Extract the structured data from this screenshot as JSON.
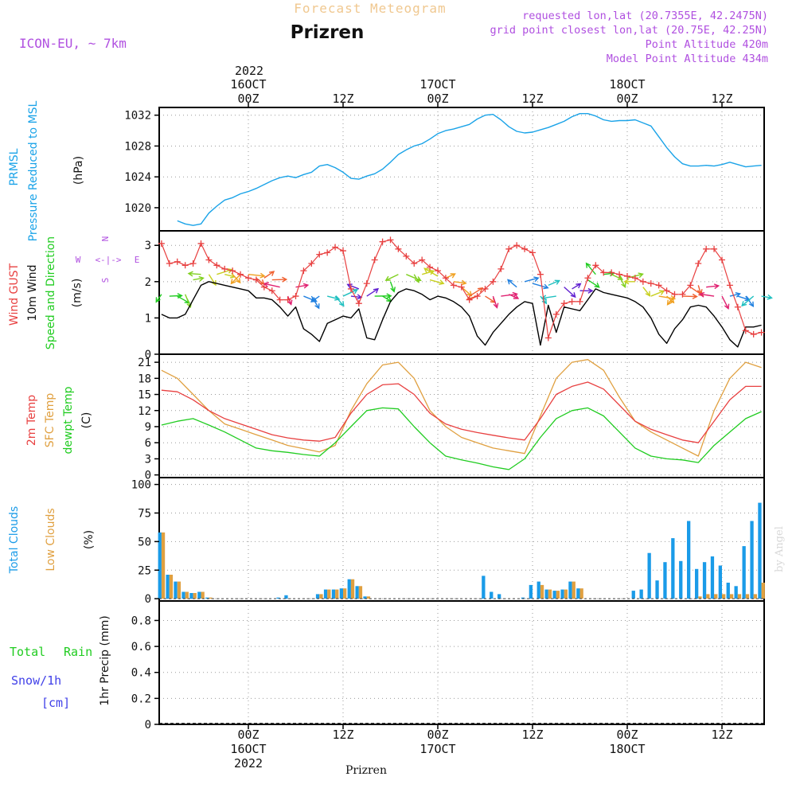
{
  "header": {
    "product": "Forecast Meteogram",
    "location": "Prizren",
    "model": "ICON-EU, ~ 7km",
    "requested": "requested lon,lat (20.7355E, 42.2475N)",
    "gridpoint": "grid point closest lon,lat (20.75E, 42.25N)",
    "point_alt": "Point Altitude 420m",
    "model_alt": "Model Point Altitude 434m",
    "footer": "Prizren",
    "credit": "by Angel"
  },
  "time_axis": {
    "top_year": "2022",
    "ticks": [
      {
        "hour": 0,
        "top": [
          "16OCT",
          "00Z"
        ],
        "bottom": [
          "00Z",
          "16OCT",
          "2022"
        ]
      },
      {
        "hour": 12,
        "top": [
          "12Z"
        ],
        "bottom": [
          "12Z"
        ]
      },
      {
        "hour": 24,
        "top": [
          "17OCT",
          "00Z"
        ],
        "bottom": [
          "00Z",
          "17OCT"
        ]
      },
      {
        "hour": 36,
        "top": [
          "12Z"
        ],
        "bottom": [
          "12Z"
        ]
      },
      {
        "hour": 48,
        "top": [
          "18OCT",
          "00Z"
        ],
        "bottom": [
          "00Z",
          "18OCT"
        ]
      },
      {
        "hour": 60,
        "top": [
          "12Z"
        ],
        "bottom": [
          "12Z"
        ]
      }
    ]
  },
  "panel_labels": {
    "p1": {
      "name": "PRMSL",
      "desc": "Pressure Reduced to MSL",
      "unit": "(hPa)"
    },
    "p2": {
      "gust": "Wind GUST",
      "wind": "10m Wind",
      "dir": "Speed and Direction",
      "unit": "(m/s)",
      "compass_n": "N",
      "compass_s": "S",
      "compass_w": "W",
      "compass_e": "E",
      "compass_h": "<-|->"
    },
    "p3": {
      "t2m": "2m Temp",
      "sfc": "SFC Temp",
      "dew": "dewpt Temp",
      "unit": "(C)"
    },
    "p4": {
      "total": "Total Clouds",
      "low": "Low Clouds",
      "unit": "(%)"
    },
    "p5": {
      "rain_a": "Total",
      "rain_b": "Rain",
      "snow": "Snow/1h",
      "snow_unit": "[cm]",
      "precip": "1hr Precip (mm)"
    }
  },
  "colors": {
    "pressure": "#1aa3e8",
    "gust": "#e84040",
    "wind": "#000000",
    "t2m": "#e84040",
    "sfc": "#e0a040",
    "dew": "#20cc20",
    "total_cloud": "#1a9be8",
    "low_cloud": "#e0a040",
    "rain": "#20cc20",
    "snow": "#4040e8",
    "header_orange": "#f0c890",
    "header_purple": "#b050e0"
  },
  "chart_data": [
    {
      "type": "line",
      "title": "PRMSL",
      "ylabel": "(hPa)",
      "x_hours_from_16OCT_00Z": [
        -9,
        -8,
        -7,
        -6,
        -5,
        -4,
        -3,
        -2,
        -1,
        0,
        1,
        2,
        3,
        4,
        5,
        6,
        7,
        8,
        9,
        10,
        11,
        12,
        13,
        14,
        15,
        16,
        17,
        18,
        19,
        20,
        21,
        22,
        23,
        24,
        25,
        26,
        27,
        28,
        29,
        30,
        31,
        32,
        33,
        34,
        35,
        36,
        37,
        38,
        39,
        40,
        41,
        42,
        43,
        44,
        45,
        46,
        47,
        48,
        49,
        50,
        51,
        52,
        53,
        54,
        55,
        56,
        57,
        58,
        59,
        60,
        61,
        62,
        63,
        64,
        65
      ],
      "values": [
        1018.3,
        1017.9,
        1017.7,
        1017.9,
        1019.3,
        1020.2,
        1021.0,
        1021.3,
        1021.8,
        1022.1,
        1022.5,
        1023.0,
        1023.5,
        1023.9,
        1024.1,
        1023.9,
        1024.3,
        1024.6,
        1025.4,
        1025.6,
        1025.2,
        1024.6,
        1023.8,
        1023.7,
        1024.1,
        1024.4,
        1025.0,
        1025.9,
        1026.9,
        1027.5,
        1028.0,
        1028.3,
        1028.9,
        1029.6,
        1030.0,
        1030.2,
        1030.5,
        1030.8,
        1031.5,
        1032.0,
        1032.1,
        1031.4,
        1030.5,
        1029.9,
        1029.7,
        1029.8,
        1030.1,
        1030.4,
        1030.8,
        1031.2,
        1031.8,
        1032.2,
        1032.2,
        1031.9,
        1031.4,
        1031.2,
        1031.3,
        1031.3,
        1031.4,
        1031.0,
        1030.6,
        1029.2,
        1027.8,
        1026.6,
        1025.7,
        1025.4,
        1025.4,
        1025.5,
        1025.4,
        1025.6,
        1025.9,
        1025.6,
        1025.3,
        1025.4,
        1025.5
      ],
      "ylim": [
        1017,
        1033
      ],
      "yticks": [
        1020,
        1024,
        1028,
        1032
      ]
    },
    {
      "type": "line",
      "title": "Wind",
      "ylabel": "(m/s)",
      "x_hours_from_16OCT_00Z": [
        -11,
        -10,
        -9,
        -8,
        -7,
        -6,
        -5,
        -4,
        -3,
        -2,
        -1,
        0,
        1,
        2,
        3,
        4,
        5,
        6,
        7,
        8,
        9,
        10,
        11,
        12,
        13,
        14,
        15,
        16,
        17,
        18,
        19,
        20,
        21,
        22,
        23,
        24,
        25,
        26,
        27,
        28,
        29,
        30,
        31,
        32,
        33,
        34,
        35,
        36,
        37,
        38,
        39,
        40,
        41,
        42,
        43,
        44,
        45,
        46,
        47,
        48,
        49,
        50,
        51,
        52,
        53,
        54,
        55,
        56,
        57,
        58,
        59,
        60,
        61,
        62,
        63,
        64,
        65
      ],
      "series": [
        {
          "name": "Wind GUST",
          "values": [
            3.05,
            2.5,
            2.55,
            2.45,
            2.5,
            3.05,
            2.6,
            2.45,
            2.35,
            2.3,
            2.2,
            2.1,
            2.05,
            1.85,
            1.75,
            1.5,
            1.5,
            1.6,
            2.3,
            2.5,
            2.75,
            2.8,
            2.95,
            2.85,
            1.8,
            1.4,
            1.95,
            2.6,
            3.1,
            3.15,
            2.9,
            2.7,
            2.5,
            2.6,
            2.4,
            2.3,
            2.1,
            1.9,
            1.85,
            1.5,
            1.6,
            1.8,
            2.0,
            2.35,
            2.9,
            3.0,
            2.9,
            2.8,
            2.2,
            0.45,
            1.1,
            1.4,
            1.45,
            1.45,
            2.1,
            2.45,
            2.25,
            2.25,
            2.2,
            2.15,
            2.1,
            2.0,
            1.95,
            1.9,
            1.75,
            1.65,
            1.65,
            1.9,
            2.5,
            2.9,
            2.9,
            2.6,
            1.9,
            1.3,
            0.65,
            0.55,
            0.6
          ]
        },
        {
          "name": "10m Wind",
          "values": [
            1.1,
            1.0,
            1.0,
            1.1,
            1.5,
            1.9,
            2.0,
            1.95,
            1.9,
            1.85,
            1.8,
            1.75,
            1.55,
            1.55,
            1.5,
            1.3,
            1.05,
            1.3,
            0.7,
            0.55,
            0.35,
            0.85,
            0.95,
            1.05,
            1.0,
            1.25,
            0.45,
            0.4,
            0.95,
            1.45,
            1.7,
            1.8,
            1.75,
            1.65,
            1.5,
            1.6,
            1.55,
            1.45,
            1.3,
            1.05,
            0.5,
            0.25,
            0.6,
            0.85,
            1.1,
            1.3,
            1.45,
            1.4,
            0.25,
            1.35,
            0.6,
            1.3,
            1.25,
            1.2,
            1.5,
            1.8,
            1.7,
            1.65,
            1.6,
            1.55,
            1.45,
            1.3,
            1.0,
            0.55,
            0.3,
            0.7,
            0.95,
            1.3,
            1.35,
            1.3,
            1.05,
            0.75,
            0.4,
            0.2,
            0.75,
            0.75,
            0.8
          ]
        }
      ],
      "ylim": [
        0,
        3.4
      ],
      "yticks": [
        0,
        1,
        2,
        3
      ]
    },
    {
      "type": "line",
      "title": "Temperature",
      "ylabel": "(C)",
      "x_hours_from_16OCT_00Z": [
        -11,
        -9,
        -7,
        -5,
        -3,
        -1,
        1,
        3,
        5,
        7,
        9,
        11,
        13,
        15,
        17,
        19,
        21,
        23,
        25,
        27,
        29,
        31,
        33,
        35,
        37,
        39,
        41,
        43,
        45,
        47,
        49,
        51,
        53,
        55,
        57,
        59,
        61,
        63,
        65
      ],
      "series": [
        {
          "name": "2m Temp",
          "values": [
            15.8,
            15.5,
            14.0,
            12.0,
            10.5,
            9.5,
            8.5,
            7.5,
            6.9,
            6.5,
            6.3,
            7.0,
            11.5,
            15.0,
            16.8,
            17.0,
            15.0,
            11.5,
            9.5,
            8.5,
            7.9,
            7.4,
            6.9,
            6.5,
            10.5,
            15.0,
            16.5,
            17.3,
            16.0,
            13.0,
            10.0,
            8.5,
            7.5,
            6.5,
            6.0,
            10.0,
            14.0,
            16.5,
            16.5
          ]
        },
        {
          "name": "SFC Temp",
          "values": [
            19.5,
            18.0,
            15.0,
            12.0,
            9.5,
            8.5,
            7.5,
            6.5,
            5.5,
            4.9,
            4.3,
            5.5,
            12.0,
            17.0,
            20.5,
            21.0,
            18.0,
            12.0,
            9.0,
            7.0,
            6.0,
            5.0,
            4.5,
            4.0,
            11.0,
            18.0,
            21.0,
            21.5,
            19.5,
            14.5,
            10.0,
            8.0,
            6.5,
            5.0,
            3.5,
            12.0,
            18.0,
            21.0,
            20.0
          ]
        },
        {
          "name": "dewpt Temp",
          "values": [
            9.3,
            10.0,
            10.5,
            9.3,
            8.0,
            6.5,
            5.0,
            4.5,
            4.2,
            3.8,
            3.5,
            6.0,
            9.0,
            12.0,
            12.5,
            12.3,
            9.0,
            6.0,
            3.5,
            2.8,
            2.2,
            1.5,
            1.0,
            3.0,
            7.0,
            10.5,
            12.0,
            12.5,
            11.0,
            8.0,
            5.0,
            3.5,
            3.0,
            2.8,
            2.3,
            5.5,
            8.0,
            10.5,
            11.8
          ]
        }
      ],
      "ylim": [
        -0.5,
        22.5
      ],
      "yticks": [
        0,
        3,
        6,
        9,
        12,
        15,
        18,
        21
      ]
    },
    {
      "type": "bar",
      "title": "Clouds",
      "ylabel": "(%)",
      "x_hours_from_16OCT_00Z": [
        -11,
        -10,
        -9,
        -8,
        -7,
        -6,
        -5,
        -4,
        -3,
        -2,
        -1,
        0,
        1,
        2,
        3,
        4,
        5,
        6,
        7,
        8,
        9,
        10,
        11,
        12,
        13,
        14,
        15,
        16,
        17,
        18,
        19,
        20,
        21,
        22,
        23,
        24,
        25,
        26,
        27,
        28,
        29,
        30,
        31,
        32,
        33,
        34,
        35,
        36,
        37,
        38,
        39,
        40,
        41,
        42,
        43,
        44,
        45,
        46,
        47,
        48,
        49,
        50,
        51,
        52,
        53,
        54,
        55,
        56,
        57,
        58,
        59,
        60,
        61,
        62,
        63,
        64,
        65
      ],
      "series": [
        {
          "name": "Total Clouds",
          "values": [
            58,
            21,
            15,
            6,
            5,
            6,
            1,
            0,
            0,
            0,
            0,
            0,
            0,
            0,
            0,
            1,
            3,
            0,
            0,
            0,
            4,
            8,
            8,
            9,
            17,
            11,
            2,
            0,
            0,
            0,
            0,
            0,
            0,
            0,
            0,
            0,
            0,
            0,
            0,
            0,
            0,
            20,
            6,
            4,
            0,
            0,
            1,
            12,
            15,
            8,
            7,
            8,
            15,
            9,
            0,
            0,
            0,
            0,
            0,
            0,
            7,
            8,
            40,
            16,
            32,
            53,
            33,
            68,
            26,
            32,
            37,
            29,
            14,
            11,
            46,
            68,
            84
          ]
        },
        {
          "name": "Low Clouds",
          "values": [
            58,
            21,
            15,
            6,
            5,
            6,
            1,
            0,
            0,
            0,
            0,
            0,
            0,
            0,
            0,
            0,
            0,
            0,
            0,
            0,
            4,
            8,
            8,
            9,
            17,
            11,
            2,
            0,
            0,
            0,
            0,
            0,
            0,
            0,
            0,
            0,
            0,
            0,
            0,
            0,
            0,
            0,
            0,
            0,
            0,
            0,
            0,
            0,
            12,
            8,
            7,
            8,
            15,
            9,
            0,
            0,
            0,
            0,
            0,
            0,
            0,
            0,
            0,
            0,
            0,
            0,
            0,
            0,
            2,
            4,
            4,
            4,
            4,
            4,
            4,
            4,
            14
          ]
        }
      ],
      "ylim": [
        -2,
        106
      ],
      "yticks": [
        0,
        25,
        50,
        75,
        100
      ]
    },
    {
      "type": "bar",
      "title": "Precipitation",
      "ylabel": "1hr Precip (mm)",
      "series": [
        {
          "name": "Total Rain",
          "values": []
        },
        {
          "name": "Snow/1h",
          "values": []
        }
      ],
      "ylim": [
        0,
        0.95
      ],
      "yticks": [
        0,
        0.2,
        0.4,
        0.6,
        0.8
      ]
    }
  ]
}
